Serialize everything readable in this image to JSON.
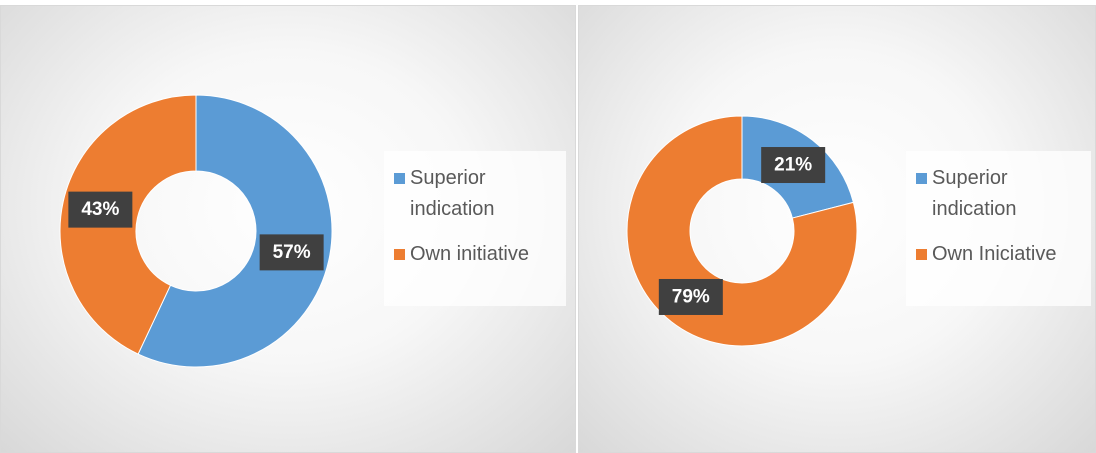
{
  "chart_data": [
    {
      "type": "donut",
      "categories": [
        "Superior indication",
        "Own initiative"
      ],
      "values": [
        57,
        43
      ],
      "value_labels": [
        "57%",
        "43%"
      ],
      "colors": [
        "#5b9bd5",
        "#ed7d31"
      ],
      "legend": "right"
    },
    {
      "type": "donut",
      "categories": [
        "Superior indication",
        "Own Iniciative"
      ],
      "values": [
        21,
        79
      ],
      "value_labels": [
        "21%",
        "79%"
      ],
      "colors": [
        "#5b9bd5",
        "#ed7d31"
      ],
      "legend": "right"
    }
  ]
}
